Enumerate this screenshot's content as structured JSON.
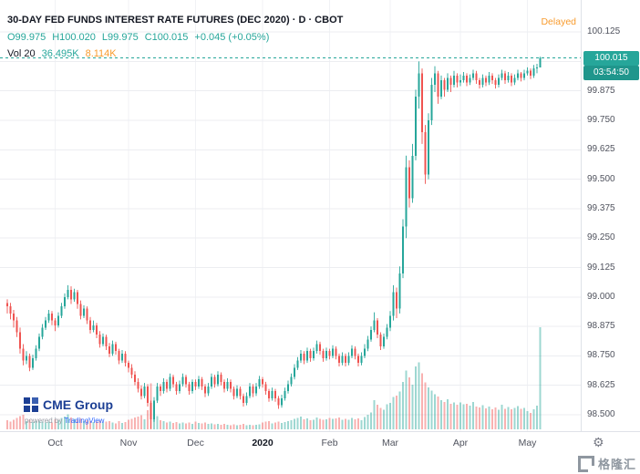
{
  "header": {
    "title_full": "30-DAY FED FUNDS INTEREST RATE FUTURES (DEC 2020) · D · CBOT",
    "ohlc": {
      "o": "O99.975",
      "h": "H100.020",
      "l": "L99.975",
      "c": "C100.015",
      "change": "+0.045 (+0.05%)"
    },
    "volume": {
      "label": "Vol 20",
      "value": "36.495K",
      "ma": "8.114K"
    },
    "delayed_label": "Delayed"
  },
  "axes": {
    "price_ticks": [
      "100.125",
      "100.000",
      "99.875",
      "99.750",
      "99.625",
      "99.500",
      "99.375",
      "99.250",
      "99.125",
      "99.000",
      "98.875",
      "98.750",
      "98.625",
      "98.500"
    ],
    "last_price_badge": "100.015",
    "countdown_badge": "03:54:50"
  },
  "footer": {
    "cme": "CME Group",
    "powered_by": "powered by",
    "tradingview": "TradingView",
    "watermark": "格隆汇",
    "gear_icon": "⚙"
  },
  "colors": {
    "up": "#26a69a",
    "down": "#ef5350",
    "accent": "#26a69a",
    "delayed_orange": "#f89b2d",
    "vol_ma_orange": "#f89b2d",
    "badge_teal": "#26a69a",
    "countdown_teal": "#1f968c",
    "title_text": "#131722",
    "axis_text": "#50535e",
    "grid": "#ecedf1",
    "grid_vertical": "#f1f2f5",
    "cme_blue": "#1c3f94",
    "tv_blue": "#2962ff",
    "watermark_gray": "#8f97a0"
  },
  "chart_data": {
    "type": "candlestick",
    "title": "30-DAY FED FUNDS INTEREST RATE FUTURES (DEC 2020)",
    "interval": "D",
    "exchange": "CBOT",
    "open": 99.975,
    "high": 100.02,
    "low": 99.975,
    "close": 100.015,
    "change": 0.045,
    "change_pct": 0.05,
    "volume_last_k": 36.495,
    "volume_ma_k": 8.114,
    "ylim": [
      98.44,
      100.18
    ],
    "price_grid_step": 0.125,
    "grid": true,
    "legend_position": "top-left",
    "columns": [
      "open",
      "high",
      "low",
      "close",
      "volume_k"
    ],
    "x_ticks": [
      {
        "label": "Oct",
        "i": 15
      },
      {
        "label": "Nov",
        "i": 38
      },
      {
        "label": "Dec",
        "i": 59
      },
      {
        "label": "2020",
        "i": 80,
        "bold": true
      },
      {
        "label": "Feb",
        "i": 101
      },
      {
        "label": "Mar",
        "i": 120
      },
      {
        "label": "Apr",
        "i": 142
      },
      {
        "label": "May",
        "i": 163
      }
    ],
    "candles": [
      [
        98.975,
        98.99,
        98.93,
        98.96,
        3.2
      ],
      [
        98.96,
        98.975,
        98.905,
        98.93,
        2.8
      ],
      [
        98.93,
        98.945,
        98.87,
        98.9,
        3.5
      ],
      [
        98.9,
        98.915,
        98.83,
        98.85,
        4.1
      ],
      [
        98.85,
        98.87,
        98.76,
        98.78,
        4.8
      ],
      [
        98.78,
        98.8,
        98.71,
        98.73,
        5.2
      ],
      [
        98.73,
        98.77,
        98.715,
        98.75,
        3.0
      ],
      [
        98.75,
        98.76,
        98.685,
        98.7,
        3.4
      ],
      [
        98.7,
        98.755,
        98.69,
        98.74,
        2.6
      ],
      [
        98.74,
        98.795,
        98.73,
        98.78,
        2.9
      ],
      [
        98.78,
        98.845,
        98.77,
        98.83,
        3.1
      ],
      [
        98.83,
        98.885,
        98.82,
        98.87,
        2.7
      ],
      [
        98.87,
        98.915,
        98.86,
        98.9,
        2.4
      ],
      [
        98.9,
        98.945,
        98.89,
        98.93,
        2.8
      ],
      [
        98.93,
        98.94,
        98.88,
        98.9,
        2.5
      ],
      [
        98.9,
        98.91,
        98.855,
        98.88,
        3.6
      ],
      [
        98.88,
        98.935,
        98.87,
        98.92,
        3.2
      ],
      [
        98.92,
        98.975,
        98.91,
        98.96,
        4.0
      ],
      [
        98.96,
        99.015,
        98.95,
        99.0,
        4.6
      ],
      [
        99.0,
        99.05,
        98.99,
        99.03,
        5.4
      ],
      [
        99.03,
        99.045,
        98.97,
        98.99,
        4.2
      ],
      [
        98.99,
        99.035,
        98.98,
        99.02,
        3.8
      ],
      [
        99.02,
        99.03,
        98.95,
        98.97,
        3.5
      ],
      [
        98.97,
        98.985,
        98.905,
        98.92,
        3.9
      ],
      [
        98.92,
        98.965,
        98.91,
        98.95,
        2.9
      ],
      [
        98.95,
        98.96,
        98.885,
        98.9,
        3.3
      ],
      [
        98.9,
        98.915,
        98.845,
        98.86,
        3.0
      ],
      [
        98.86,
        98.9,
        98.85,
        98.88,
        2.6
      ],
      [
        98.88,
        98.89,
        98.825,
        98.84,
        2.8
      ],
      [
        98.84,
        98.855,
        98.785,
        98.8,
        3.1
      ],
      [
        98.8,
        98.845,
        98.79,
        98.83,
        2.5
      ],
      [
        98.83,
        98.84,
        98.775,
        98.79,
        2.7
      ],
      [
        98.79,
        98.805,
        98.745,
        98.76,
        3.0
      ],
      [
        98.76,
        98.815,
        98.75,
        98.8,
        2.4
      ],
      [
        98.8,
        98.81,
        98.755,
        98.77,
        2.2
      ],
      [
        98.77,
        98.78,
        98.715,
        98.73,
        2.9
      ],
      [
        98.73,
        98.775,
        98.72,
        98.76,
        2.3
      ],
      [
        98.76,
        98.77,
        98.705,
        98.72,
        2.6
      ],
      [
        98.72,
        98.73,
        98.68,
        98.7,
        3.4
      ],
      [
        98.7,
        98.715,
        98.655,
        98.67,
        3.8
      ],
      [
        98.67,
        98.685,
        98.625,
        98.64,
        4.2
      ],
      [
        98.64,
        98.655,
        98.595,
        98.61,
        4.6
      ],
      [
        98.61,
        98.625,
        98.565,
        98.58,
        5.1
      ],
      [
        98.58,
        98.635,
        98.57,
        98.62,
        3.6
      ],
      [
        98.62,
        98.63,
        98.535,
        98.55,
        6.8
      ],
      [
        98.55,
        98.56,
        98.44,
        98.48,
        16.5
      ],
      [
        98.48,
        98.575,
        98.47,
        98.56,
        7.4
      ],
      [
        98.56,
        98.635,
        98.55,
        98.62,
        4.8
      ],
      [
        98.62,
        98.63,
        98.58,
        98.6,
        3.2
      ],
      [
        98.6,
        98.655,
        98.59,
        98.64,
        2.9
      ],
      [
        98.64,
        98.65,
        98.595,
        98.61,
        2.5
      ],
      [
        98.61,
        98.675,
        98.6,
        98.66,
        2.8
      ],
      [
        98.66,
        98.67,
        98.615,
        98.63,
        2.3
      ],
      [
        98.63,
        98.64,
        98.585,
        98.6,
        2.6
      ],
      [
        98.6,
        98.645,
        98.59,
        98.63,
        2.1
      ],
      [
        98.63,
        98.675,
        98.62,
        98.66,
        2.4
      ],
      [
        98.66,
        98.67,
        98.615,
        98.63,
        2.2
      ],
      [
        98.63,
        98.64,
        98.585,
        98.6,
        2.5
      ],
      [
        98.6,
        98.65,
        98.59,
        98.64,
        2.0
      ],
      [
        98.64,
        98.65,
        98.605,
        98.62,
        2.7
      ],
      [
        98.62,
        98.665,
        98.61,
        98.65,
        2.3
      ],
      [
        98.65,
        98.66,
        98.605,
        98.62,
        2.1
      ],
      [
        98.62,
        98.63,
        98.575,
        98.59,
        2.4
      ],
      [
        98.59,
        98.635,
        98.58,
        98.62,
        1.9
      ],
      [
        98.62,
        98.675,
        98.61,
        98.66,
        2.2
      ],
      [
        98.66,
        98.67,
        98.615,
        98.63,
        1.8
      ],
      [
        98.63,
        98.685,
        98.62,
        98.67,
        2.0
      ],
      [
        98.67,
        98.68,
        98.625,
        98.64,
        1.7
      ],
      [
        98.64,
        98.65,
        98.595,
        98.61,
        1.9
      ],
      [
        98.61,
        98.655,
        98.6,
        98.64,
        1.6
      ],
      [
        98.64,
        98.65,
        98.595,
        98.61,
        1.5
      ],
      [
        98.61,
        98.62,
        98.565,
        98.58,
        1.8
      ],
      [
        98.58,
        98.625,
        98.57,
        98.61,
        1.4
      ],
      [
        98.61,
        98.62,
        98.565,
        98.58,
        1.6
      ],
      [
        98.58,
        98.59,
        98.535,
        98.55,
        2.0
      ],
      [
        98.55,
        98.595,
        98.54,
        98.58,
        1.5
      ],
      [
        98.58,
        98.635,
        98.57,
        98.62,
        1.7
      ],
      [
        98.62,
        98.63,
        98.575,
        98.59,
        1.4
      ],
      [
        98.59,
        98.635,
        98.58,
        98.62,
        1.6
      ],
      [
        98.62,
        98.665,
        98.61,
        98.65,
        1.8
      ],
      [
        98.65,
        98.66,
        98.615,
        98.63,
        2.4
      ],
      [
        98.63,
        98.64,
        98.585,
        98.6,
        2.7
      ],
      [
        98.6,
        98.61,
        98.555,
        98.57,
        3.0
      ],
      [
        98.57,
        98.615,
        98.56,
        98.6,
        2.2
      ],
      [
        98.6,
        98.61,
        98.555,
        98.57,
        2.5
      ],
      [
        98.57,
        98.58,
        98.525,
        98.54,
        2.8
      ],
      [
        98.54,
        98.585,
        98.53,
        98.57,
        2.3
      ],
      [
        98.57,
        98.615,
        98.56,
        98.6,
        2.6
      ],
      [
        98.6,
        98.645,
        98.59,
        98.63,
        2.9
      ],
      [
        98.63,
        98.675,
        98.62,
        98.66,
        3.2
      ],
      [
        98.66,
        98.715,
        98.65,
        98.7,
        3.8
      ],
      [
        98.7,
        98.745,
        98.69,
        98.73,
        4.1
      ],
      [
        98.73,
        98.775,
        98.72,
        98.76,
        4.5
      ],
      [
        98.76,
        98.77,
        98.715,
        98.73,
        3.6
      ],
      [
        98.73,
        98.785,
        98.72,
        98.77,
        3.9
      ],
      [
        98.77,
        98.78,
        98.725,
        98.74,
        3.3
      ],
      [
        98.74,
        98.785,
        98.73,
        98.77,
        3.5
      ],
      [
        98.77,
        98.815,
        98.76,
        98.8,
        4.2
      ],
      [
        98.8,
        98.81,
        98.755,
        98.77,
        3.7
      ],
      [
        98.77,
        98.78,
        98.725,
        98.74,
        3.4
      ],
      [
        98.74,
        98.785,
        98.73,
        98.77,
        3.6
      ],
      [
        98.77,
        98.78,
        98.735,
        98.75,
        4.0
      ],
      [
        98.75,
        98.795,
        98.74,
        98.78,
        3.7
      ],
      [
        98.78,
        98.79,
        98.735,
        98.75,
        3.9
      ],
      [
        98.75,
        98.76,
        98.705,
        98.72,
        4.3
      ],
      [
        98.72,
        98.765,
        98.71,
        98.75,
        3.5
      ],
      [
        98.75,
        98.76,
        98.705,
        98.72,
        3.8
      ],
      [
        98.72,
        98.765,
        98.71,
        98.75,
        3.4
      ],
      [
        98.75,
        98.795,
        98.74,
        98.78,
        4.1
      ],
      [
        98.78,
        98.79,
        98.735,
        98.75,
        3.6
      ],
      [
        98.75,
        98.76,
        98.705,
        98.72,
        3.9
      ],
      [
        98.72,
        98.765,
        98.71,
        98.75,
        3.3
      ],
      [
        98.75,
        98.8,
        98.74,
        98.78,
        4.4
      ],
      [
        98.78,
        98.835,
        98.77,
        98.82,
        5.2
      ],
      [
        98.82,
        98.875,
        98.81,
        98.86,
        6.0
      ],
      [
        98.86,
        98.935,
        98.85,
        98.9,
        10.5
      ],
      [
        98.9,
        98.91,
        98.825,
        98.84,
        8.8
      ],
      [
        98.84,
        98.85,
        98.775,
        98.79,
        7.6
      ],
      [
        98.79,
        98.845,
        98.78,
        98.83,
        7.0
      ],
      [
        98.83,
        98.885,
        98.82,
        98.87,
        9.0
      ],
      [
        98.87,
        98.94,
        98.855,
        98.92,
        9.5
      ],
      [
        98.92,
        99.05,
        98.9,
        99.02,
        11.5
      ],
      [
        99.02,
        99.04,
        98.91,
        98.95,
        12.0
      ],
      [
        98.95,
        99.13,
        98.93,
        99.1,
        13.5
      ],
      [
        99.1,
        99.33,
        99.08,
        99.3,
        17.0
      ],
      [
        99.3,
        99.6,
        99.25,
        99.55,
        21.0
      ],
      [
        99.55,
        99.58,
        99.38,
        99.42,
        18.5
      ],
      [
        99.42,
        99.65,
        99.4,
        99.6,
        16.0
      ],
      [
        99.6,
        99.88,
        99.58,
        99.85,
        22.5
      ],
      [
        99.85,
        100.0,
        99.8,
        99.95,
        24.0
      ],
      [
        99.95,
        99.97,
        99.65,
        99.7,
        20.0
      ],
      [
        99.7,
        99.73,
        99.48,
        99.52,
        16.8
      ],
      [
        99.52,
        99.78,
        99.5,
        99.75,
        15.0
      ],
      [
        99.75,
        99.93,
        99.73,
        99.9,
        13.8
      ],
      [
        99.9,
        99.98,
        99.87,
        99.95,
        12.5
      ],
      [
        99.95,
        99.96,
        99.82,
        99.85,
        11.8
      ],
      [
        99.85,
        99.94,
        99.84,
        99.92,
        10.5
      ],
      [
        99.92,
        99.93,
        99.85,
        99.88,
        9.8
      ],
      [
        99.88,
        99.95,
        99.87,
        99.93,
        10.8
      ],
      [
        99.93,
        99.94,
        99.87,
        99.9,
        9.2
      ],
      [
        99.9,
        99.96,
        99.89,
        99.94,
        9.6
      ],
      [
        99.94,
        99.95,
        99.89,
        99.91,
        8.8
      ],
      [
        99.91,
        99.945,
        99.895,
        99.92,
        9.6
      ],
      [
        99.92,
        99.955,
        99.91,
        99.94,
        8.9
      ],
      [
        99.94,
        99.95,
        99.895,
        99.91,
        9.2
      ],
      [
        99.91,
        99.945,
        99.9,
        99.93,
        8.4
      ],
      [
        99.93,
        99.965,
        99.92,
        99.95,
        9.8
      ],
      [
        99.95,
        99.96,
        99.905,
        99.92,
        8.1
      ],
      [
        99.92,
        99.93,
        99.885,
        99.9,
        7.8
      ],
      [
        99.9,
        99.945,
        99.89,
        99.93,
        8.6
      ],
      [
        99.93,
        99.94,
        99.895,
        99.91,
        7.5
      ],
      [
        99.91,
        99.955,
        99.9,
        99.94,
        8.2
      ],
      [
        99.94,
        99.95,
        99.905,
        99.92,
        7.2
      ],
      [
        99.92,
        99.93,
        99.885,
        99.9,
        7.9
      ],
      [
        99.9,
        99.945,
        99.89,
        99.93,
        7.0
      ],
      [
        99.93,
        99.965,
        99.92,
        99.95,
        8.8
      ],
      [
        99.95,
        99.96,
        99.905,
        99.92,
        7.4
      ],
      [
        99.92,
        99.955,
        99.91,
        99.94,
        8.0
      ],
      [
        99.94,
        99.95,
        99.895,
        99.91,
        7.1
      ],
      [
        99.91,
        99.945,
        99.9,
        99.93,
        7.7
      ],
      [
        99.93,
        99.965,
        99.92,
        99.95,
        8.3
      ],
      [
        99.95,
        99.955,
        99.915,
        99.93,
        7.3
      ],
      [
        99.93,
        99.965,
        99.92,
        99.95,
        7.6
      ],
      [
        99.95,
        99.975,
        99.94,
        99.96,
        6.5
      ],
      [
        99.96,
        99.97,
        99.925,
        99.94,
        5.8
      ],
      [
        99.94,
        99.985,
        99.93,
        99.97,
        7.2
      ],
      [
        99.97,
        99.99,
        99.95,
        99.975,
        8.4
      ],
      [
        99.975,
        100.02,
        99.975,
        100.015,
        36.495
      ]
    ]
  }
}
